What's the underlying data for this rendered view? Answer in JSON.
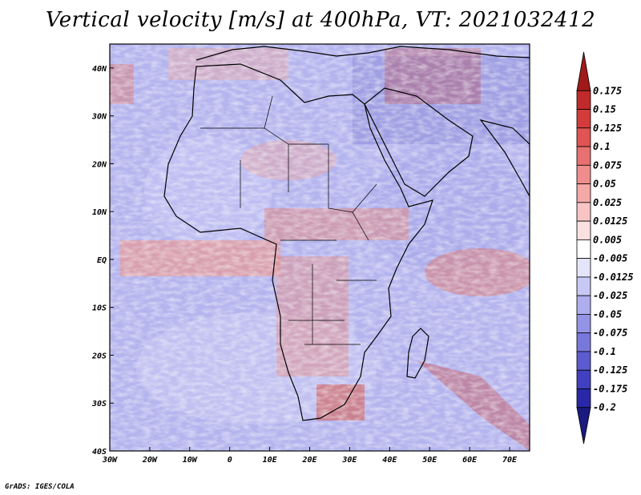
{
  "title": "Vertical velocity [m/s] at 400hPa, VT: 2021032412",
  "credit": "GrADS: IGES/COLA",
  "map": {
    "lon_range": [
      -30,
      75
    ],
    "lat_range": [
      -40,
      45
    ],
    "lat_labels": [
      {
        "value": 40,
        "text": "40N"
      },
      {
        "value": 30,
        "text": "30N"
      },
      {
        "value": 20,
        "text": "20N"
      },
      {
        "value": 10,
        "text": "10N"
      },
      {
        "value": 0,
        "text": "EQ"
      },
      {
        "value": -10,
        "text": "10S"
      },
      {
        "value": -20,
        "text": "20S"
      },
      {
        "value": -30,
        "text": "30S"
      },
      {
        "value": -40,
        "text": "40S"
      }
    ],
    "lon_labels": [
      {
        "value": -30,
        "text": "30W"
      },
      {
        "value": -20,
        "text": "20W"
      },
      {
        "value": -10,
        "text": "10W"
      },
      {
        "value": 0,
        "text": "0"
      },
      {
        "value": 10,
        "text": "10E"
      },
      {
        "value": 20,
        "text": "20E"
      },
      {
        "value": 30,
        "text": "30E"
      },
      {
        "value": 40,
        "text": "40E"
      },
      {
        "value": 50,
        "text": "50E"
      },
      {
        "value": 60,
        "text": "60E"
      },
      {
        "value": 70,
        "text": "70E"
      }
    ]
  },
  "colorbar": {
    "labels": [
      "0.175",
      "0.15",
      "0.125",
      "0.1",
      "0.075",
      "0.05",
      "0.025",
      "0.0125",
      "0.005",
      "-0.005",
      "-0.0125",
      "-0.025",
      "-0.05",
      "-0.075",
      "-0.1",
      "-0.125",
      "-0.175",
      "-0.2"
    ],
    "colors": [
      "#a01a1a",
      "#c02a2a",
      "#d43c3c",
      "#e05454",
      "#e87070",
      "#ef8c8c",
      "#f4a8a8",
      "#f8c4c4",
      "#fbe0e0",
      "#ffffff",
      "#e4e4fb",
      "#c8c8f4",
      "#aeaeee",
      "#9494e6",
      "#7878dc",
      "#5c5cd0",
      "#4040c0",
      "#2828a8",
      "#1a1a80"
    ]
  }
}
